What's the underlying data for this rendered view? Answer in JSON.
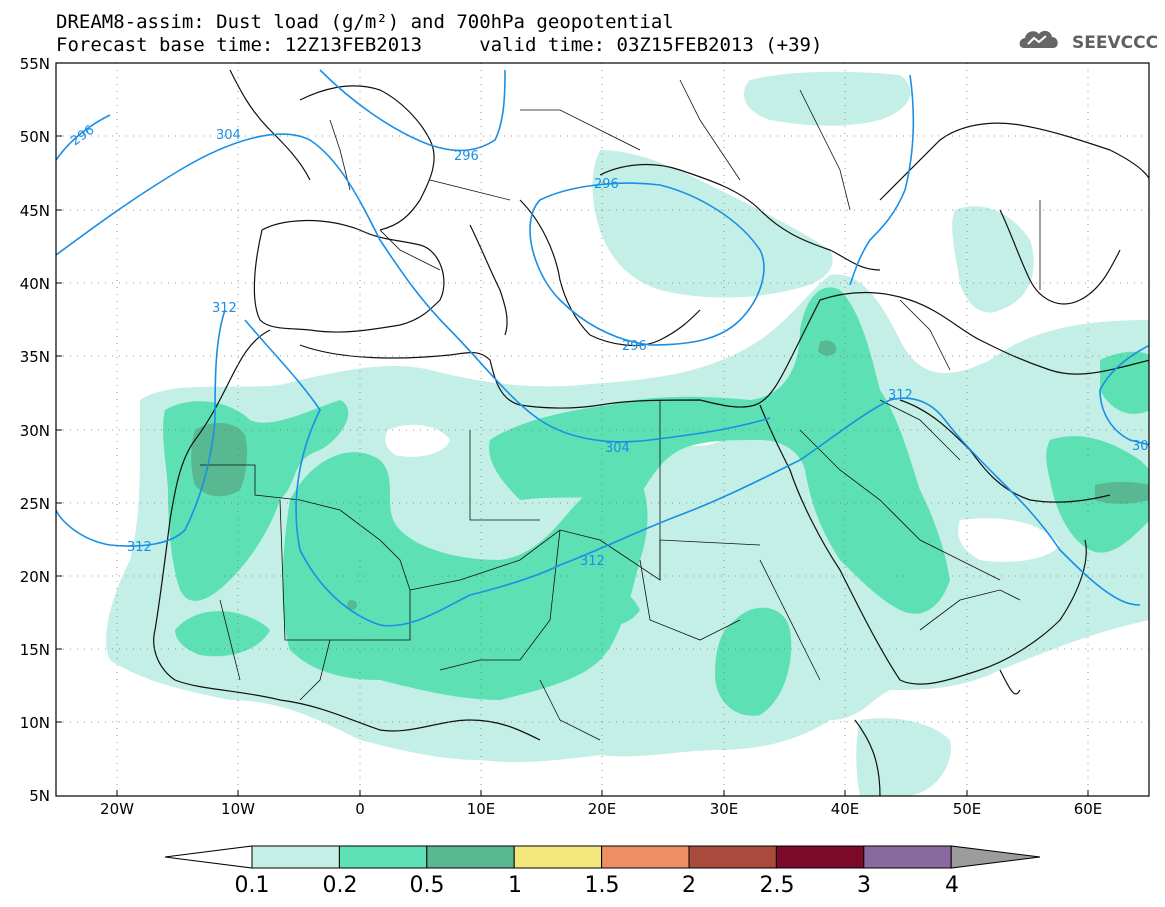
{
  "header": {
    "line1": "DREAM8-assim: Dust load (g/m²) and 700hPa geopotential",
    "line2": "Forecast base time: 12Z13FEB2013     valid time: 03Z15FEB2013 (+39)",
    "logo_text": "SEEVCCC"
  },
  "axes": {
    "lat_ticks": [
      "55N",
      "50N",
      "45N",
      "40N",
      "35N",
      "30N",
      "25N",
      "20N",
      "15N",
      "10N",
      "5N"
    ],
    "lon_ticks": [
      "20W",
      "10W",
      "0",
      "10E",
      "20E",
      "30E",
      "40E",
      "50E",
      "60E"
    ]
  },
  "contours": {
    "labels": [
      "296",
      "304",
      "296",
      "296",
      "296",
      "312",
      "304",
      "312",
      "312",
      "312",
      "30"
    ]
  },
  "colorbar": {
    "levels": [
      "0.1",
      "0.2",
      "0.5",
      "1",
      "1.5",
      "2",
      "2.5",
      "3",
      "4"
    ],
    "colors": [
      "#ffffff",
      "#c3efe6",
      "#5de0b4",
      "#57b892",
      "#f4e87c",
      "#ec9063",
      "#a84b3c",
      "#7d0a2a",
      "#8a6a9e",
      "#9c9c9c"
    ]
  },
  "colors": {
    "dust_low": "#c3efe6",
    "dust_mid": "#5de0b4",
    "dust_high": "#57b892",
    "contour": "#1a8fe6"
  }
}
